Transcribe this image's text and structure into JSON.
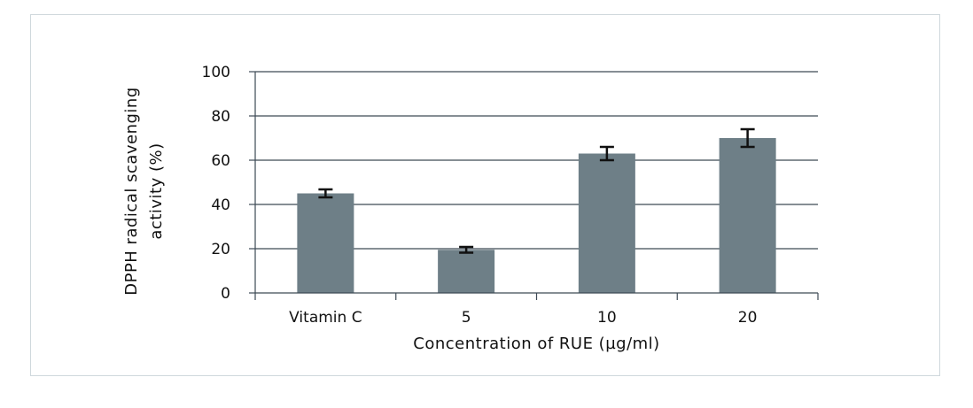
{
  "chart_data": {
    "type": "bar",
    "categories": [
      "Vitamin C",
      "5",
      "10",
      "20"
    ],
    "values": [
      45,
      19.5,
      63,
      70
    ],
    "errors": [
      1.8,
      1.3,
      3,
      4
    ],
    "xlabel": "Concentration of RUE (µg/ml)",
    "ylabel_lines": [
      "DPPH radical scavenging",
      "activity (%)"
    ],
    "ylim": [
      0,
      100
    ],
    "yticks": [
      0,
      20,
      40,
      60,
      80,
      100
    ],
    "grid": true,
    "colors": {
      "bar": "#6e7f87",
      "grid": "#3d4a55",
      "errorbar": "#111111"
    }
  }
}
